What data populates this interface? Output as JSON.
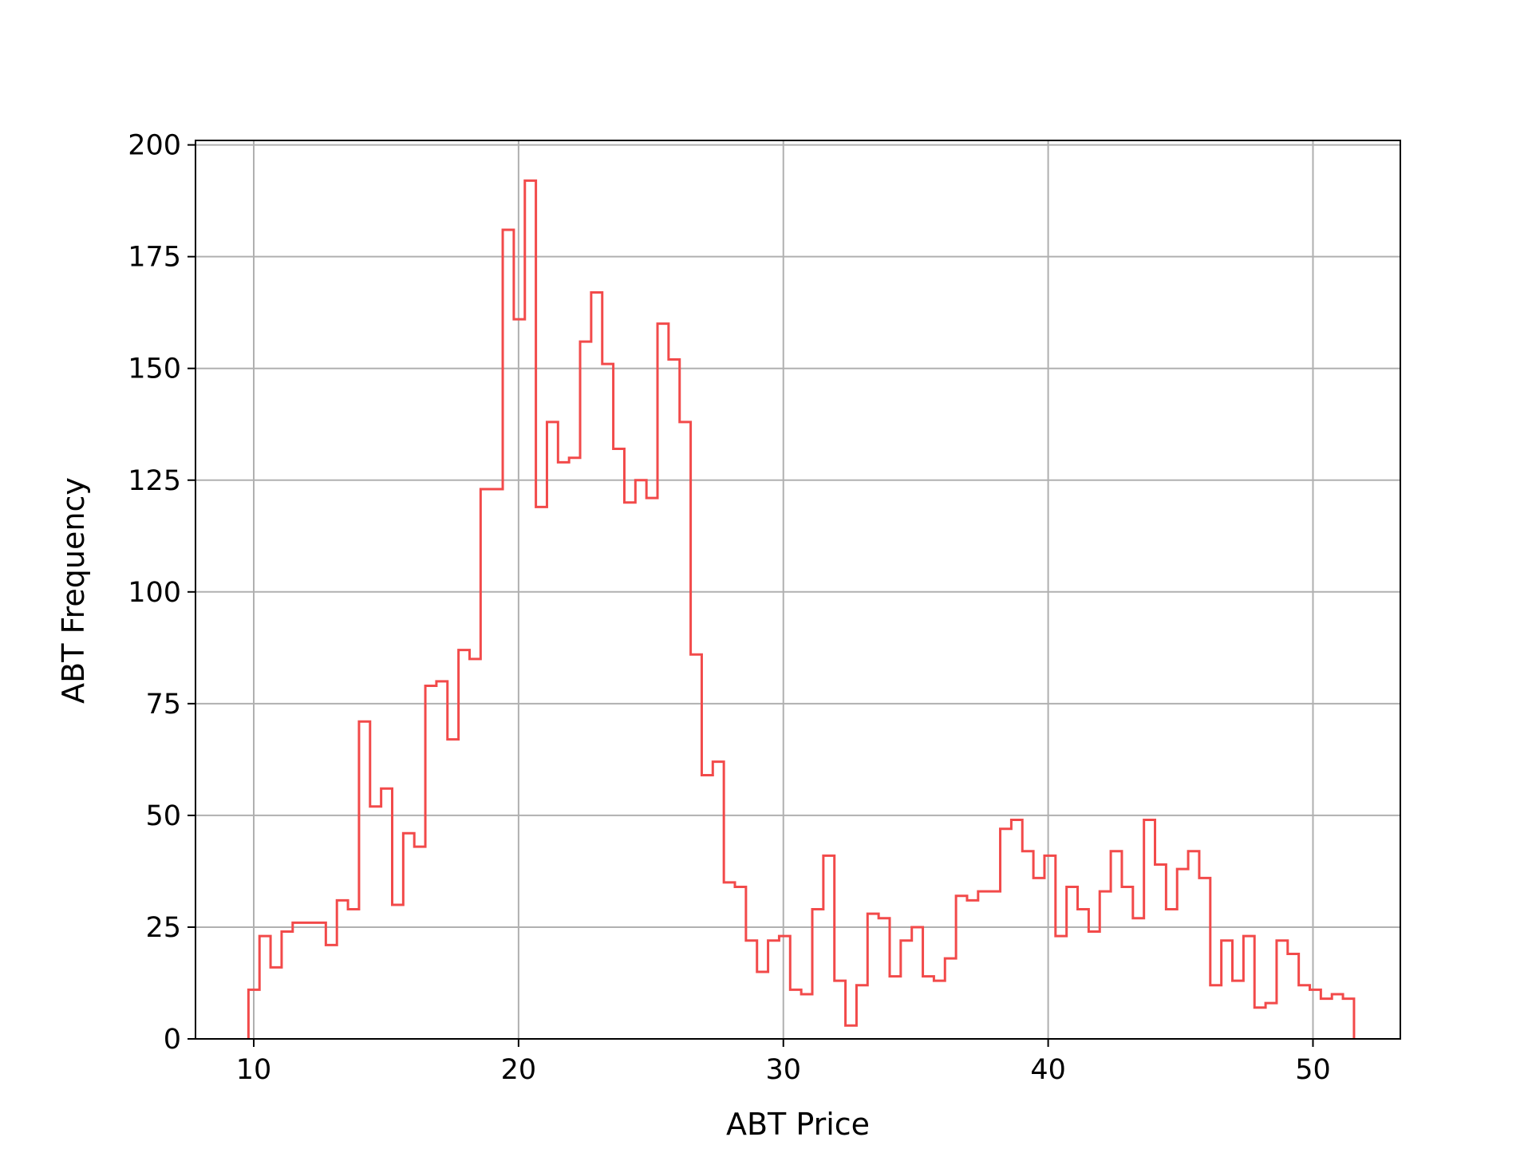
{
  "chart_data": {
    "type": "histogram",
    "title": "",
    "xlabel": "ABT Price",
    "ylabel": "ABT Frequency",
    "xlim": [
      7.8,
      53.3
    ],
    "ylim": [
      0,
      201
    ],
    "x_ticks": [
      10,
      20,
      30,
      40,
      50
    ],
    "y_ticks": [
      0,
      25,
      50,
      75,
      100,
      125,
      150,
      175,
      200
    ],
    "grid": true,
    "legend": "none",
    "colors": {
      "series": "#f24a4a",
      "grid": "#b0b0b0",
      "axes": "#000000",
      "background": "#ffffff"
    },
    "bin_start": 9.8,
    "bin_width": 0.4175,
    "counts": [
      11,
      23,
      16,
      24,
      26,
      26,
      26,
      21,
      31,
      29,
      71,
      52,
      56,
      30,
      46,
      43,
      79,
      80,
      67,
      87,
      85,
      123,
      123,
      181,
      161,
      192,
      119,
      138,
      129,
      130,
      156,
      167,
      151,
      132,
      120,
      125,
      121,
      160,
      152,
      138,
      86,
      59,
      62,
      35,
      34,
      22,
      15,
      22,
      23,
      11,
      10,
      29,
      41,
      13,
      3,
      12,
      28,
      27,
      14,
      22,
      25,
      14,
      13,
      18,
      32,
      31,
      33,
      33,
      47,
      49,
      42,
      36,
      41,
      23,
      34,
      29,
      24,
      33,
      42,
      34,
      27,
      49,
      39,
      29,
      38,
      42,
      36,
      12,
      22,
      13,
      23,
      7,
      8,
      22,
      19,
      12,
      11,
      9,
      10,
      9
    ]
  }
}
